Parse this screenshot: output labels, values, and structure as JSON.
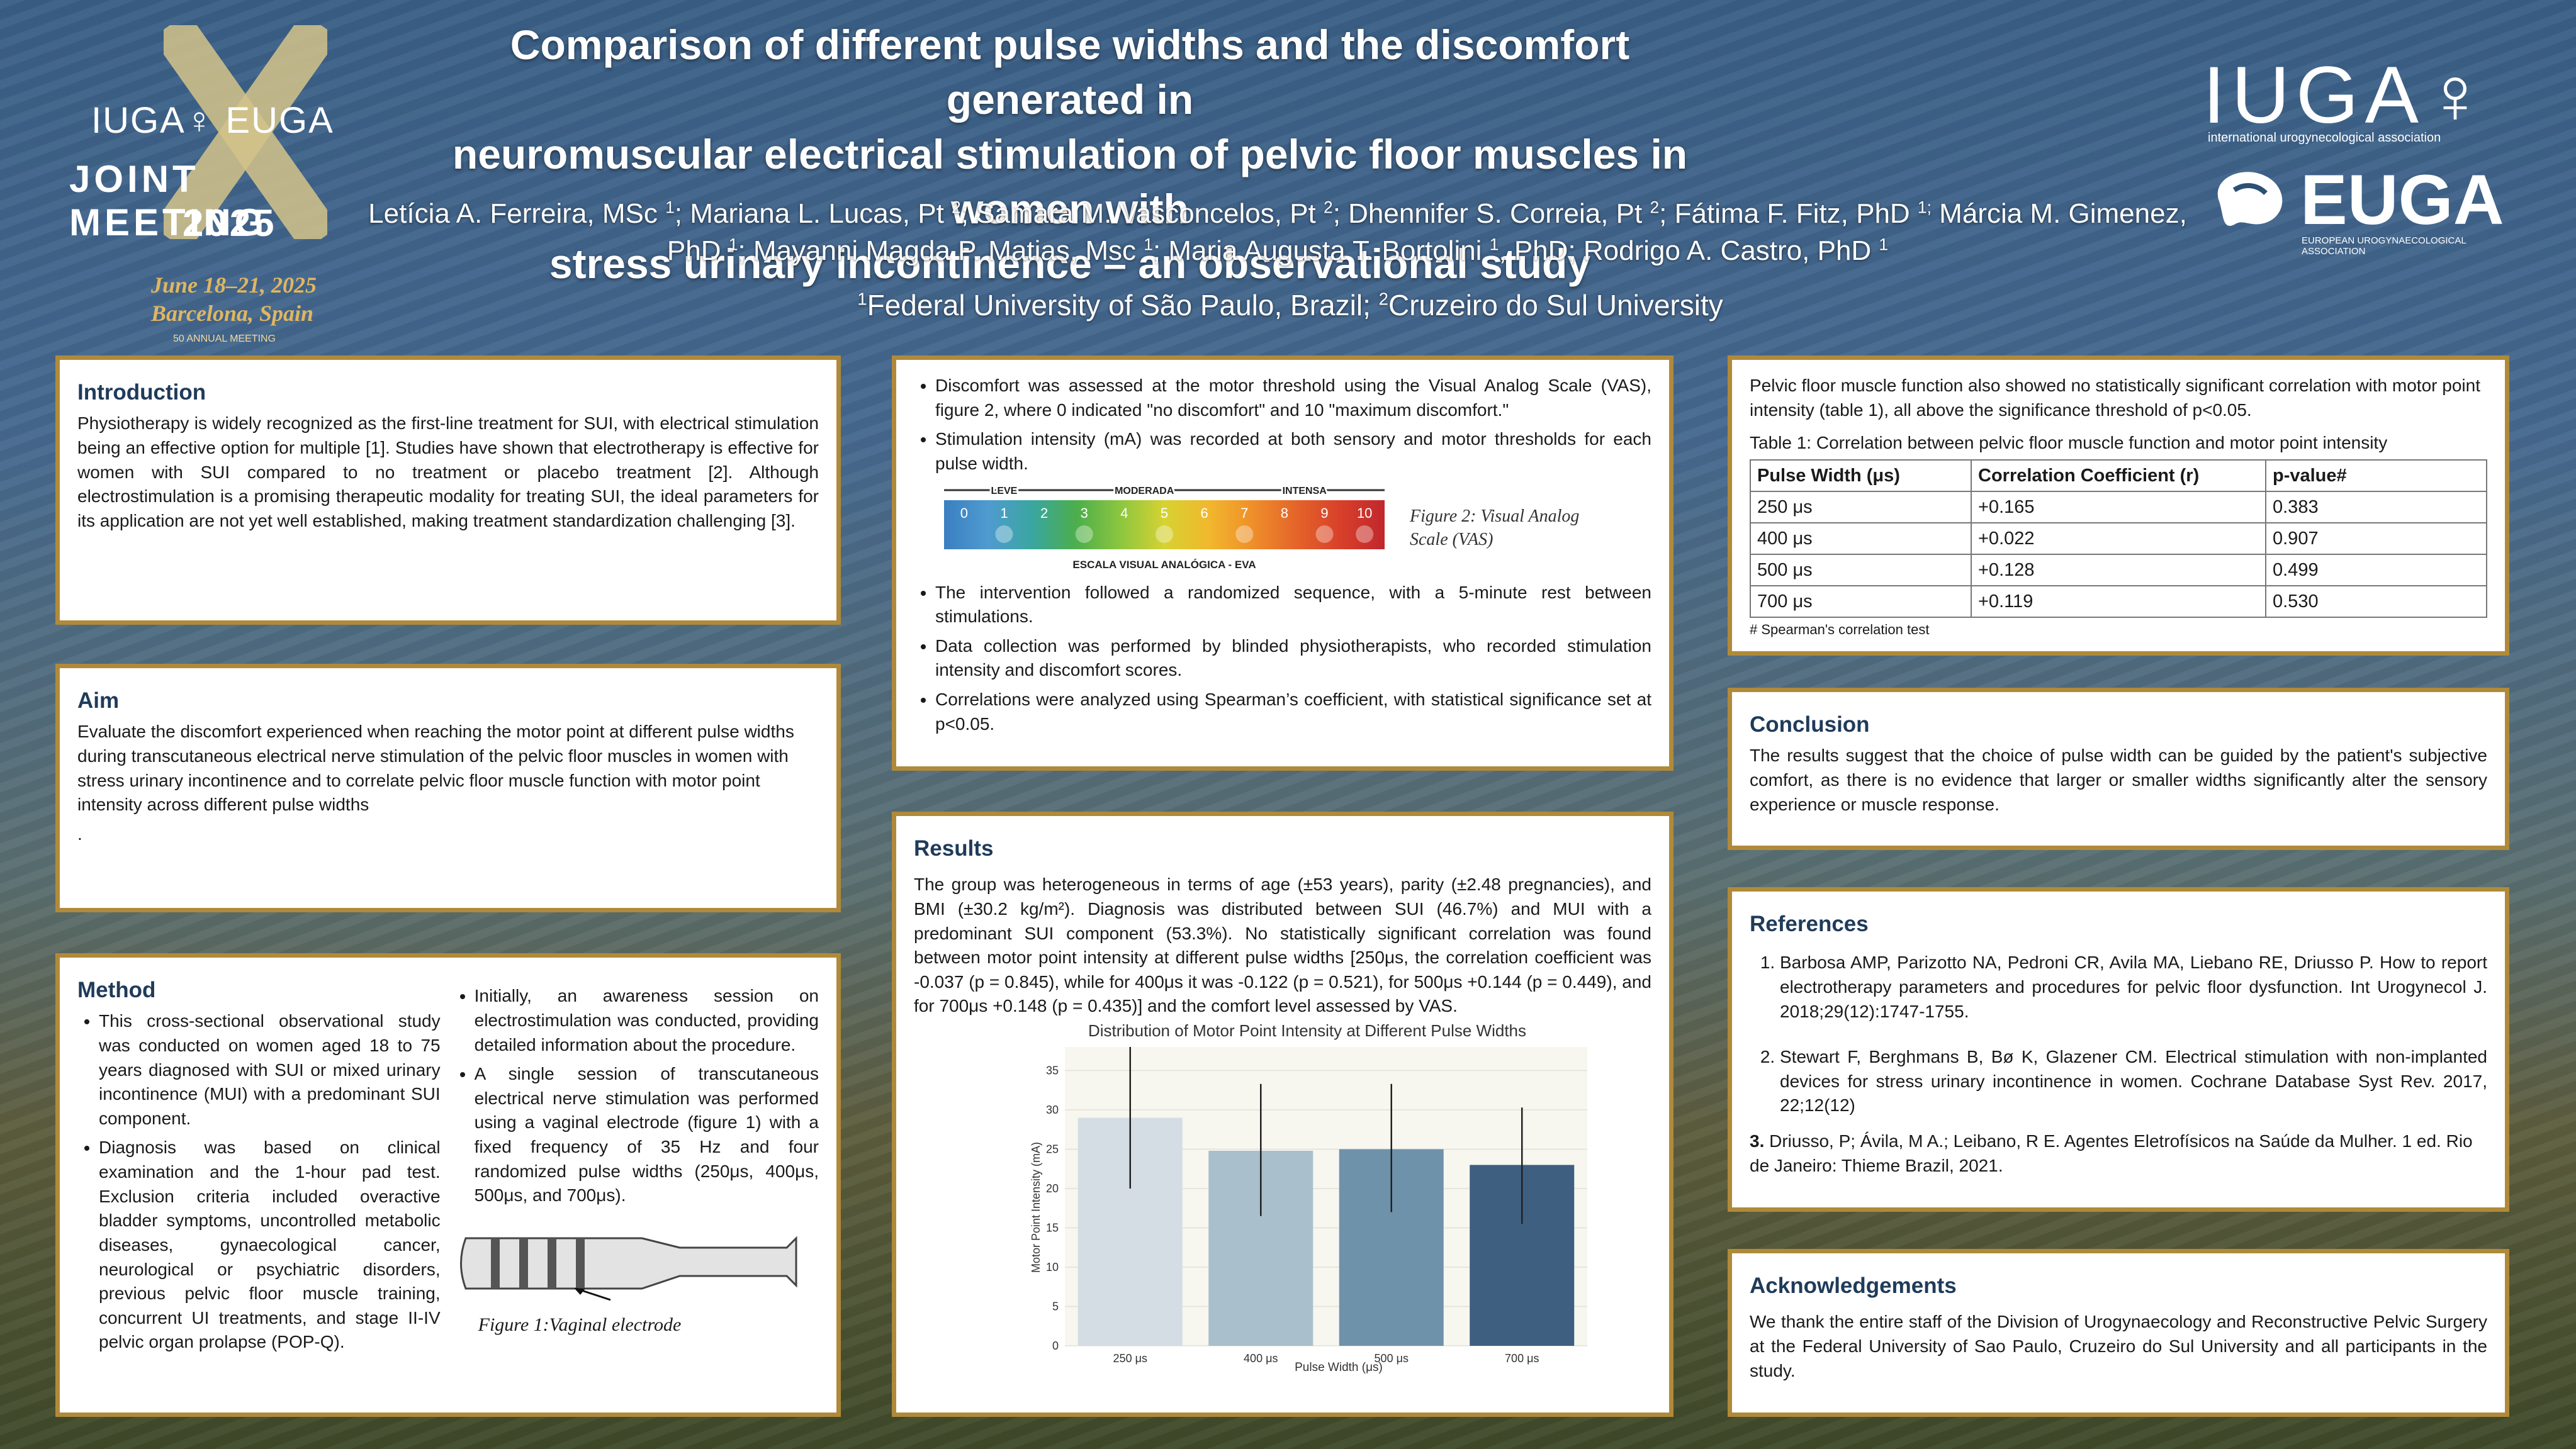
{
  "header": {
    "title_line1": "Comparison of different pulse widths and the discomfort generated in",
    "title_line2": "neuromuscular electrical stimulation of pelvic floor muscles in women with",
    "title_line3": "stress urinary incontinence – an observational study",
    "authors": [
      {
        "name": "Letícia A. Ferreira, MSc ",
        "sup": "1",
        "sep": "; "
      },
      {
        "name": "Mariana L. Lucas, Pt ",
        "sup": "2",
        "sep": "; "
      },
      {
        "name": "Samara M. Vasconcelos, Pt ",
        "sup": "2",
        "sep": "; "
      },
      {
        "name": "Dhennifer S. Correia, Pt ",
        "sup": "2",
        "sep": "; "
      },
      {
        "name": "Fátima F. Fitz, PhD ",
        "sup": "1;",
        "sep": " "
      },
      {
        "name": "Márcia M. Gimenez, PhD ",
        "sup": "1",
        "sep": "; "
      },
      {
        "name": "Mayanni Magda P. Matias, Msc ",
        "sup": "1",
        "sep": "; "
      },
      {
        "name": "Maria Augusta T. Bortolini ",
        "sup": "1",
        "sep": ", PhD; "
      },
      {
        "name": "Rodrigo A. Castro, PhD ",
        "sup": "1",
        "sep": ""
      }
    ],
    "affil_1_sup": "1",
    "affil_1": "Federal University of São Paulo, Brazil; ",
    "affil_2_sup": "2",
    "affil_2": "Cruzeiro do Sul University"
  },
  "logos": {
    "left_top": "IUGA♀ EUGA",
    "left_meeting": "JOINT MEETING",
    "left_year": "2025",
    "left_dates": "June 18–21, 2025",
    "left_place": "Barcelona, Spain",
    "left_50": "50 ANNUAL MEETING",
    "iuga": "IUGA♀",
    "iuga_sub": "international urogynecological association",
    "euga": "EUGA",
    "euga_sub": "EUROPEAN UROGYNAECOLOGICAL ASSOCIATION"
  },
  "intro": {
    "heading": "Introduction",
    "text": "Physiotherapy is widely recognized as the first-line treatment for SUI, with electrical stimulation being an effective option for multiple [1]. Studies have shown that electrotherapy is effective for women with SUI compared to no treatment or placebo treatment [2]. Although electrostimulation is a promising therapeutic modality for treating SUI, the ideal parameters for its application are not yet well established, making treatment standardization challenging [3]."
  },
  "aim": {
    "heading": "Aim",
    "text": "Evaluate the discomfort experienced when reaching the motor point at different pulse widths during transcutaneous electrical nerve stimulation of the pelvic floor muscles in women with stress urinary incontinence and to correlate pelvic floor muscle function with motor point intensity across different pulse widths",
    "dot": "."
  },
  "method": {
    "heading": "Method",
    "col1": [
      "This cross-sectional observational study was conducted on women aged 18 to 75 years diagnosed with SUI or mixed urinary incontinence (MUI) with a predominant SUI component.",
      "Diagnosis was based on clinical examination and the 1-hour pad test. Exclusion criteria included overactive bladder symptoms, uncontrolled metabolic diseases, gynaecological cancer, neurological or psychiatric disorders, previous pelvic floor muscle training, concurrent UI treatments, and stage II-IV pelvic organ prolapse (POP-Q)."
    ],
    "col2": [
      "Initially, an awareness session on electrostimulation was conducted, providing detailed information about the procedure.",
      "A single session of transcutaneous electrical nerve stimulation was performed using a vaginal electrode (figure 1) with a fixed frequency of 35 Hz and four randomized pulse widths (250μs, 400μs, 500μs, and 700μs)."
    ],
    "fig1_caption": "Figure 1:Vaginal electrode"
  },
  "methods2": {
    "bullets_top": [
      "Discomfort was assessed at the motor threshold using the Visual Analog Scale (VAS), figure 2, where 0 indicated \"no discomfort\" and 10 \"maximum discomfort.\"",
      "Stimulation intensity (mA) was recorded at both sensory and motor thresholds for each pulse width."
    ],
    "vas": {
      "labels": [
        "LEVE",
        "MODERADA",
        "INTENSA"
      ],
      "numbers": [
        "0",
        "1",
        "2",
        "3",
        "4",
        "5",
        "6",
        "7",
        "8",
        "9",
        "10"
      ],
      "footer": "ESCALA VISUAL ANALÓGICA - EVA",
      "caption_line1": "Figure 2: Visual Analog",
      "caption_line2": "Scale (VAS)",
      "colors": [
        "#3a7fc1",
        "#4f9bd0",
        "#3aa6a0",
        "#4cae4c",
        "#8cc63f",
        "#d6d232",
        "#f1b82d",
        "#ef8f2a",
        "#e4642a",
        "#d8402a",
        "#c0272d"
      ]
    },
    "bullets_bottom": [
      "The intervention followed a randomized sequence, with a 5-minute rest between stimulations.",
      "Data collection was performed by blinded physiotherapists, who recorded stimulation intensity and discomfort scores.",
      "Correlations were analyzed using Spearman’s coefficient, with statistical significance set at p<0.05."
    ]
  },
  "results": {
    "heading": "Results",
    "text": "The group was heterogeneous in terms of age (±53 years), parity (±2.48 pregnancies), and BMI (±30.2 kg/m²). Diagnosis was distributed between SUI (46.7%) and MUI with a predominant SUI component (53.3%). No statistically significant correlation was found between motor point intensity at different pulse widths [250μs, the correlation coefficient was -0.037 (p = 0.845), while for 400μs it was -0.122 (p = 0.521), for 500μs +0.144 (p = 0.449), and for 700μs +0.148 (p = 0.435)] and the comfort level assessed by VAS."
  },
  "chart_data": {
    "type": "bar",
    "title": "Distribution of Motor Point Intensity at Different Pulse Widths",
    "xlabel": "Pulse Width (μs)",
    "ylabel": "Motor Point Intensity (mA)",
    "categories": [
      "250 μs",
      "400 μs",
      "500 μs",
      "700 μs"
    ],
    "values": [
      29,
      24.8,
      25,
      23
    ],
    "error_low": [
      20,
      16.5,
      17,
      15.5
    ],
    "error_high": [
      38,
      33.3,
      33.3,
      30.3
    ],
    "ylim": [
      0,
      38
    ],
    "yticks": [
      0,
      5,
      10,
      15,
      20,
      25,
      30,
      35
    ],
    "grid": true,
    "colors": [
      "#d3dde3",
      "#a9bfcb",
      "#6f92ab",
      "#3e5f7f"
    ]
  },
  "pfm": {
    "text": "Pelvic floor muscle function also showed no statistically significant correlation with motor point intensity (table 1), all above the significance threshold of p<0.05.",
    "table_title": "Table 1: Correlation between pelvic floor muscle function and motor point intensity",
    "headers": [
      "Pulse Width (μs)",
      "Correlation Coefficient (r)",
      "p-value#"
    ],
    "rows": [
      [
        "250 μs",
        "+0.165",
        "0.383"
      ],
      [
        "400 μs",
        "+0.022",
        "0.907"
      ],
      [
        "500 μs",
        "+0.128",
        "0.499"
      ],
      [
        "700 μs",
        "+0.119",
        "0.530"
      ]
    ],
    "note": "# Spearman's correlation test"
  },
  "conclusion": {
    "heading": "Conclusion",
    "text": "The results suggest that the choice of pulse width can be guided by the patient's subjective comfort, as there is no evidence that larger or smaller widths significantly alter the sensory experience or muscle response."
  },
  "references": {
    "heading": "References",
    "items": [
      "Barbosa AMP, Parizotto NA, Pedroni CR, Avila MA, Liebano RE, Driusso P. How to report electrotherapy parameters and procedures for pelvic floor dysfunction. Int Urogynecol J. 2018;29(12):1747-1755.",
      "Stewart F, Berghmans B, Bø K, Glazener CM. Electrical stimulation with non-implanted devices for stress urinary incontinence in women. Cochrane Database Syst Rev. 2017, 22;12(12)"
    ],
    "item3_num": "3.",
    "item3_text": " Driusso, P; Ávila, M A.; Leibano, R E. Agentes Eletrofísicos na Saúde da Mulher. 1 ed. Rio de Janeiro: Thieme Brazil, 2021."
  },
  "ack": {
    "heading": "Acknowledgements",
    "text": "We thank the entire staff of the Division of Urogynaecology and Reconstructive Pelvic Surgery at the Federal University of Sao Paulo, Cruzeiro do Sul University and all participants in the study."
  }
}
